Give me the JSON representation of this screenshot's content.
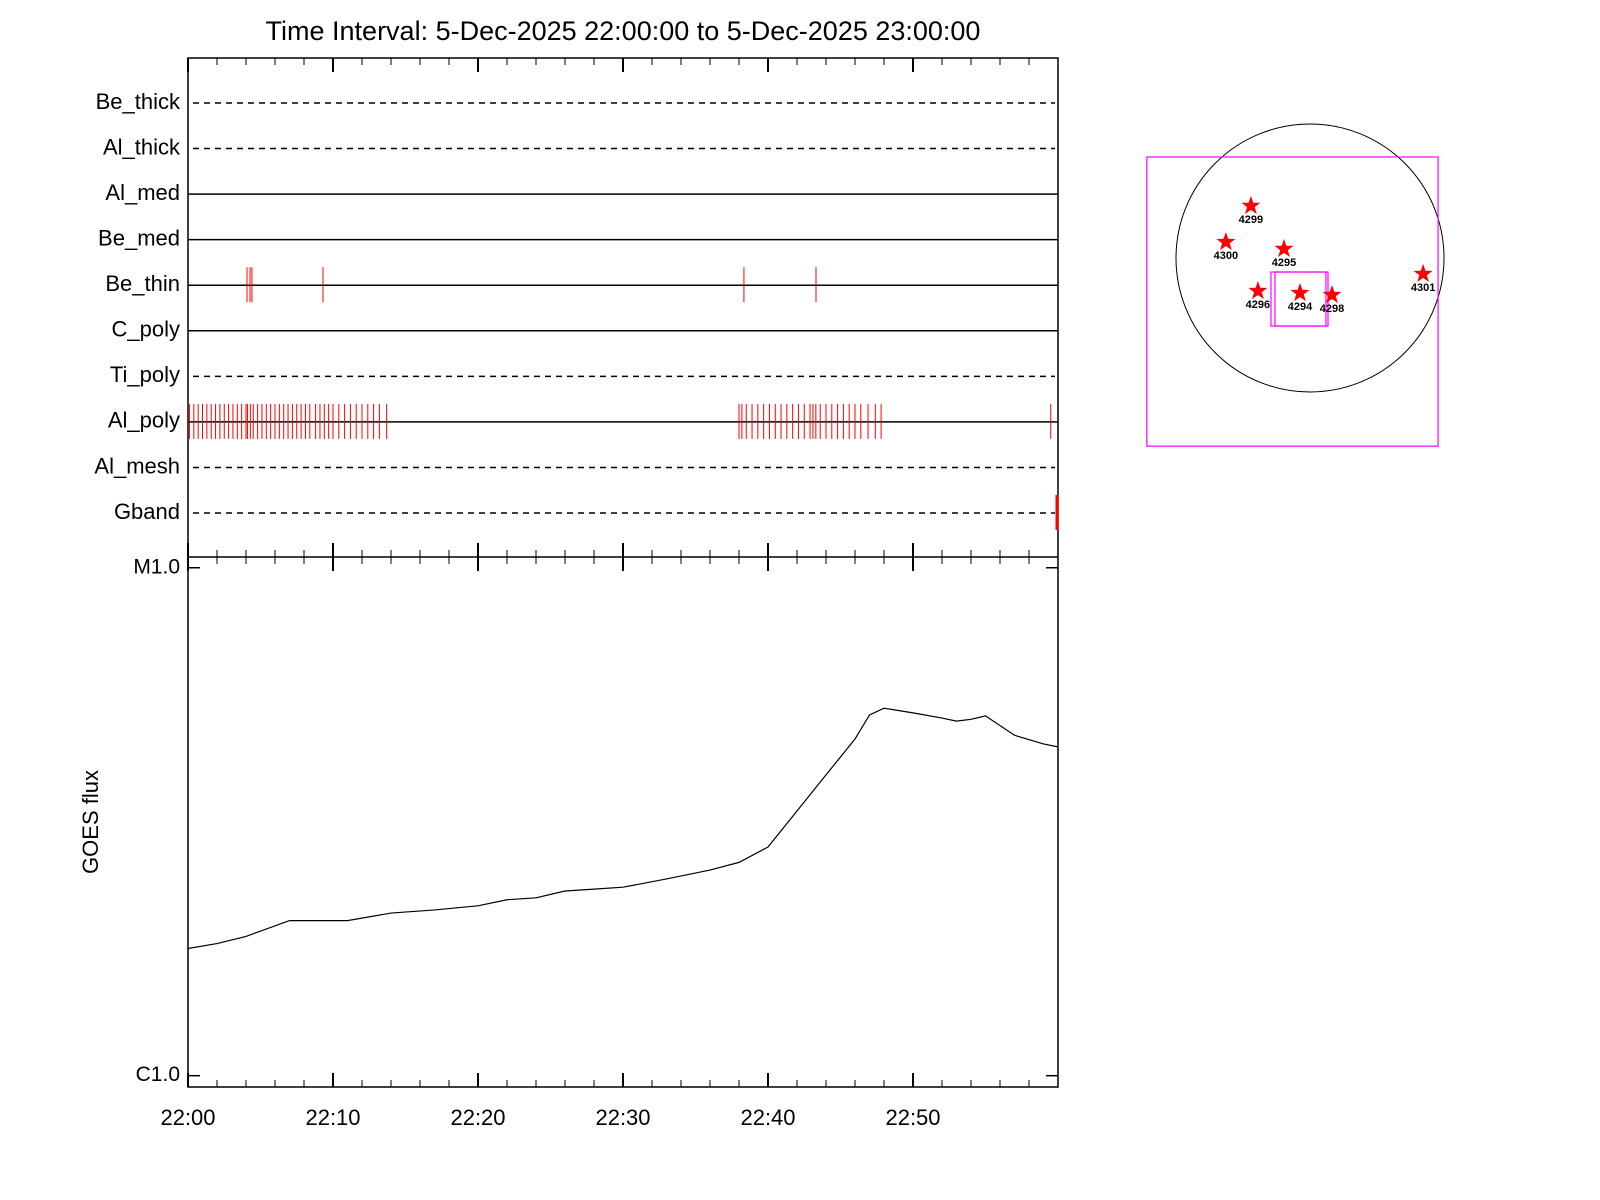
{
  "chart_data": [
    {
      "type": "timeline",
      "title": "Time Interval:  5-Dec-2025 22:00:00 to  5-Dec-2025 23:00:00",
      "xlim": [
        0,
        60
      ],
      "color": "#ff0000",
      "rows": [
        {
          "name": "Be_thick",
          "style": "dashed",
          "events": []
        },
        {
          "name": "Al_thick",
          "style": "dashed",
          "events": []
        },
        {
          "name": "Al_med",
          "style": "solid",
          "events": []
        },
        {
          "name": "Be_med",
          "style": "solid",
          "events": []
        },
        {
          "name": "Be_thin",
          "style": "solid",
          "events": [
            4.07,
            4.28,
            4.41,
            9.31,
            38.34,
            43.31
          ]
        },
        {
          "name": "C_poly",
          "style": "solid",
          "events": []
        },
        {
          "name": "Ti_poly",
          "style": "dashed",
          "events": []
        },
        {
          "name": "Al_poly",
          "style": "solid",
          "events": [
            0.1,
            0.4,
            0.7,
            1.0,
            1.3,
            1.6,
            1.9,
            2.2,
            2.5,
            2.8,
            3.1,
            3.4,
            3.7,
            4.0,
            4.1,
            4.3,
            4.5,
            4.8,
            5.1,
            5.4,
            5.7,
            6.0,
            6.3,
            6.6,
            6.9,
            7.2,
            7.5,
            7.8,
            8.1,
            8.4,
            8.8,
            9.1,
            9.4,
            9.7,
            10.0,
            10.4,
            10.8,
            11.2,
            11.6,
            12.0,
            12.4,
            12.8,
            13.2,
            13.7,
            38.0,
            38.2,
            38.5,
            38.9,
            39.3,
            39.7,
            40.1,
            40.5,
            40.9,
            41.3,
            41.7,
            42.1,
            42.5,
            42.9,
            43.1,
            43.3,
            43.6,
            44.0,
            44.4,
            44.8,
            45.2,
            45.6,
            46.0,
            46.4,
            46.9,
            47.4,
            47.8,
            59.5
          ]
        },
        {
          "name": "Al_mesh",
          "style": "dashed",
          "events": []
        },
        {
          "name": "Gband",
          "style": "dashed",
          "events": [
            59.93
          ]
        }
      ]
    },
    {
      "type": "line",
      "ylabel": "GOES flux",
      "log_scale": true,
      "xlim": [
        0,
        60
      ],
      "xticks": [
        {
          "value": 0,
          "label": "22:00"
        },
        {
          "value": 10,
          "label": "22:10"
        },
        {
          "value": 20,
          "label": "22:20"
        },
        {
          "value": 30,
          "label": "22:30"
        },
        {
          "value": 40,
          "label": "22:40"
        },
        {
          "value": 50,
          "label": "22:50"
        }
      ],
      "ylim": [
        9.5e-07,
        1.05e-05
      ],
      "yticks": [
        {
          "value": 1e-06,
          "label": "C1.0"
        },
        {
          "value": 1e-05,
          "label": "M1.0"
        }
      ],
      "x": [
        0,
        2,
        4,
        7,
        9,
        11,
        14,
        17,
        20,
        22,
        24,
        26,
        28,
        30,
        33,
        36,
        38,
        40,
        42,
        44,
        46,
        47,
        48,
        50,
        52,
        53,
        54,
        55,
        57,
        59,
        60
      ],
      "series": [
        {
          "color": "#000000",
          "values": [
            1.78e-06,
            1.82e-06,
            1.88e-06,
            2.02e-06,
            2.02e-06,
            2.02e-06,
            2.09e-06,
            2.12e-06,
            2.16e-06,
            2.22e-06,
            2.24e-06,
            2.31e-06,
            2.33e-06,
            2.35e-06,
            2.44e-06,
            2.54e-06,
            2.63e-06,
            2.82e-06,
            3.32e-06,
            3.91e-06,
            4.6e-06,
            5.13e-06,
            5.29e-06,
            5.18e-06,
            5.06e-06,
            4.99e-06,
            5.03e-06,
            5.11e-06,
            4.68e-06,
            4.5e-06,
            4.44e-06
          ]
        }
      ]
    },
    {
      "type": "map",
      "box_color": "#ff00ff",
      "star_color": "#ff0000",
      "fovs": [
        [
          -1187,
          932,
          735,
          -1369
        ],
        [
          -284,
          116,
          -102,
          -495
        ],
        [
          -255,
          131,
          -102,
          -495
        ]
      ],
      "regions": [
        {
          "label": "4299",
          "x": -430,
          "y": 379
        },
        {
          "label": "4300",
          "x": -612,
          "y": 116
        },
        {
          "label": "4295",
          "x": -189,
          "y": 66
        },
        {
          "label": "4296",
          "x": -379,
          "y": -240
        },
        {
          "label": "4294",
          "x": -73,
          "y": -255
        },
        {
          "label": "4298",
          "x": 160,
          "y": -269
        },
        {
          "label": "4301",
          "x": 823,
          "y": -116
        }
      ]
    }
  ]
}
